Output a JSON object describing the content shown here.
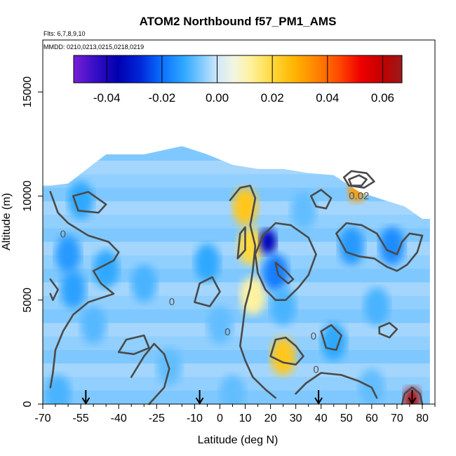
{
  "chart_data": {
    "type": "heatmap",
    "title": "ATOM2 Northbound f57_PM1_AMS",
    "flights_label": "Flts: 6,7,8,9,10",
    "dates_label": "MMDD: 0210,0213,0215,0218,0219",
    "xlabel": "Latitude (deg N)",
    "ylabel": "Altitude (m)",
    "xlim": [
      -70,
      85
    ],
    "ylim": [
      0,
      17500
    ],
    "x_ticks": [
      -70,
      -55,
      -40,
      -25,
      -10,
      0,
      10,
      20,
      30,
      40,
      50,
      60,
      70,
      80
    ],
    "y_ticks": [
      0,
      5000,
      10000,
      15000
    ],
    "colorbar": {
      "range": [
        -0.052,
        0.067
      ],
      "ticks": [
        -0.04,
        -0.02,
        0.0,
        0.02,
        0.04,
        0.06
      ],
      "tick_labels": [
        "-0.04",
        "-0.02",
        "0.00",
        "0.02",
        "0.04",
        "0.06"
      ],
      "stops": [
        {
          "value": -0.052,
          "color": "#7a1fd6"
        },
        {
          "value": -0.045,
          "color": "#3c10c8"
        },
        {
          "value": -0.036,
          "color": "#0000b0"
        },
        {
          "value": -0.028,
          "color": "#0026d8"
        },
        {
          "value": -0.02,
          "color": "#0a70ff"
        },
        {
          "value": -0.012,
          "color": "#2fa8ff"
        },
        {
          "value": -0.006,
          "color": "#7cc8ff"
        },
        {
          "value": 0.0,
          "color": "#cfe7fb"
        },
        {
          "value": 0.006,
          "color": "#f2f6e2"
        },
        {
          "value": 0.012,
          "color": "#fff2a0"
        },
        {
          "value": 0.02,
          "color": "#ffd93c"
        },
        {
          "value": 0.028,
          "color": "#ffb400"
        },
        {
          "value": 0.036,
          "color": "#ff8400"
        },
        {
          "value": 0.044,
          "color": "#ff4a00"
        },
        {
          "value": 0.052,
          "color": "#f00000"
        },
        {
          "value": 0.06,
          "color": "#c00000"
        },
        {
          "value": 0.067,
          "color": "#9a1a1a"
        }
      ]
    },
    "contour_labels": [
      {
        "text": "0.02",
        "x": 55,
        "y": 9850
      },
      {
        "text": "0",
        "x": -62,
        "y": 8000
      },
      {
        "text": "0",
        "x": 3,
        "y": 3300
      },
      {
        "text": "0",
        "x": 37,
        "y": 3100
      },
      {
        "text": "0",
        "x": 38,
        "y": 1500
      },
      {
        "text": "0",
        "x": -19,
        "y": 4750
      }
    ],
    "column_profiles": [
      {
        "lat": -67,
        "bottom": 0,
        "top": 10500
      },
      {
        "lat": -60,
        "bottom": 0,
        "top": 10600
      },
      {
        "lat": -45,
        "bottom": 0,
        "top": 12000
      },
      {
        "lat": -30,
        "bottom": 0,
        "top": 12000
      },
      {
        "lat": -15,
        "bottom": 0,
        "top": 12400
      },
      {
        "lat": -5,
        "bottom": 0,
        "top": 12000
      },
      {
        "lat": 5,
        "bottom": 0,
        "top": 11500
      },
      {
        "lat": 15,
        "bottom": 0,
        "top": 11300
      },
      {
        "lat": 25,
        "bottom": 0,
        "top": 11300
      },
      {
        "lat": 35,
        "bottom": 0,
        "top": 11100
      },
      {
        "lat": 45,
        "bottom": 0,
        "top": 11000
      },
      {
        "lat": 55,
        "bottom": 0,
        "top": 10200
      },
      {
        "lat": 65,
        "bottom": 0,
        "top": 9800
      },
      {
        "lat": 73,
        "bottom": 0,
        "top": 9500
      },
      {
        "lat": 80,
        "bottom": 0,
        "top": 8900
      }
    ],
    "anomalies": [
      {
        "lat": -55,
        "alt": 9800,
        "value": -0.012
      },
      {
        "lat": -60,
        "alt": 7200,
        "value": -0.014
      },
      {
        "lat": -58,
        "alt": 5500,
        "value": -0.013
      },
      {
        "lat": -45,
        "alt": 6500,
        "value": -0.012
      },
      {
        "lat": -50,
        "alt": 3800,
        "value": -0.009
      },
      {
        "lat": -30,
        "alt": 5800,
        "value": -0.01
      },
      {
        "lat": -20,
        "alt": 1800,
        "value": -0.008
      },
      {
        "lat": -5,
        "alt": 6800,
        "value": -0.012
      },
      {
        "lat": 0,
        "alt": 3800,
        "value": -0.008
      },
      {
        "lat": 10,
        "alt": 9500,
        "value": 0.024
      },
      {
        "lat": 12,
        "alt": 7600,
        "value": 0.02
      },
      {
        "lat": 13,
        "alt": 5200,
        "value": 0.012
      },
      {
        "lat": 19,
        "alt": 7800,
        "value": -0.035
      },
      {
        "lat": 22,
        "alt": 6300,
        "value": -0.018
      },
      {
        "lat": 25,
        "alt": 4700,
        "value": -0.01
      },
      {
        "lat": 25,
        "alt": 2300,
        "value": 0.024
      },
      {
        "lat": 33,
        "alt": 9300,
        "value": -0.008
      },
      {
        "lat": 45,
        "alt": 3000,
        "value": -0.012
      },
      {
        "lat": 52,
        "alt": 7600,
        "value": -0.014
      },
      {
        "lat": 54,
        "alt": 10300,
        "value": 0.032
      },
      {
        "lat": 62,
        "alt": 4700,
        "value": -0.01
      },
      {
        "lat": 68,
        "alt": 7600,
        "value": -0.016
      },
      {
        "lat": 76,
        "alt": 200,
        "value": 0.062
      },
      {
        "lat": -64,
        "alt": 500,
        "value": -0.01
      },
      {
        "lat": 5,
        "alt": 500,
        "value": -0.008
      },
      {
        "lat": 60,
        "alt": 800,
        "value": -0.008
      }
    ],
    "contours": [
      {
        "level": 0,
        "points": [
          [
            -45,
            9600
          ],
          [
            -52,
            10200
          ],
          [
            -58,
            10000
          ],
          [
            -56,
            9300
          ],
          [
            -48,
            9200
          ],
          [
            -45,
            9600
          ]
        ]
      },
      {
        "level": 0,
        "points": [
          [
            -67,
            10200
          ],
          [
            -64,
            9200
          ],
          [
            -60,
            8700
          ],
          [
            -52,
            8100
          ],
          [
            -44,
            7800
          ],
          [
            -40,
            7300
          ],
          [
            -42,
            6900
          ],
          [
            -50,
            6400
          ],
          [
            -47,
            5800
          ],
          [
            -42,
            5300
          ],
          [
            -52,
            4900
          ],
          [
            -58,
            4300
          ],
          [
            -62,
            3500
          ],
          [
            -65,
            2600
          ],
          [
            -66,
            1500
          ],
          [
            -67,
            800
          ]
        ]
      },
      {
        "level": 0,
        "points": [
          [
            -67,
            6000
          ],
          [
            -64,
            5500
          ],
          [
            -66,
            5000
          ],
          [
            -67,
            5300
          ]
        ]
      },
      {
        "level": 0,
        "points": [
          [
            -35,
            1300
          ],
          [
            -30,
            2300
          ],
          [
            -26,
            2900
          ],
          [
            -22,
            2400
          ],
          [
            -20,
            1700
          ],
          [
            -22,
            800
          ],
          [
            -28,
            0
          ]
        ]
      },
      {
        "level": 0,
        "points": [
          [
            -40,
            2500
          ],
          [
            -37,
            3100
          ],
          [
            -30,
            3300
          ],
          [
            -28,
            2700
          ],
          [
            -34,
            2400
          ],
          [
            -40,
            2500
          ]
        ]
      },
      {
        "level": 0,
        "points": [
          [
            -10,
            4900
          ],
          [
            -4,
            4700
          ],
          [
            0,
            5400
          ],
          [
            -3,
            6100
          ],
          [
            -8,
            5800
          ],
          [
            -10,
            4900
          ]
        ]
      },
      {
        "level": 0,
        "points": [
          [
            4,
            9800
          ],
          [
            8,
            10400
          ],
          [
            12,
            10500
          ],
          [
            14,
            9900
          ],
          [
            12,
            8600
          ],
          [
            14,
            7600
          ],
          [
            13,
            6400
          ],
          [
            12,
            5600
          ],
          [
            10,
            4700
          ],
          [
            9,
            3700
          ],
          [
            8,
            2800
          ],
          [
            10,
            2100
          ],
          [
            13,
            1300
          ],
          [
            18,
            700
          ],
          [
            22,
            300
          ]
        ]
      },
      {
        "level": 0,
        "points": [
          [
            8,
            8200
          ],
          [
            10,
            8500
          ],
          [
            10,
            7400
          ],
          [
            7,
            7000
          ],
          [
            8,
            8200
          ]
        ]
      },
      {
        "level": 0,
        "points": [
          [
            17,
            8100
          ],
          [
            22,
            8700
          ],
          [
            28,
            8600
          ],
          [
            35,
            8000
          ],
          [
            38,
            7200
          ],
          [
            35,
            6200
          ],
          [
            31,
            5600
          ],
          [
            26,
            5000
          ],
          [
            22,
            5000
          ],
          [
            18,
            5500
          ],
          [
            15,
            6300
          ],
          [
            14,
            7200
          ],
          [
            17,
            8100
          ]
        ]
      },
      {
        "level": 0,
        "points": [
          [
            22,
            6800
          ],
          [
            26,
            6400
          ],
          [
            29,
            6000
          ],
          [
            27,
            5800
          ],
          [
            23,
            6200
          ],
          [
            22,
            6800
          ]
        ]
      },
      {
        "level": 0.02,
        "points": [
          [
            20,
            2300
          ],
          [
            25,
            2000
          ],
          [
            30,
            1900
          ],
          [
            33,
            2300
          ],
          [
            30,
            2800
          ],
          [
            26,
            3200
          ],
          [
            22,
            3100
          ],
          [
            20,
            2300
          ]
        ]
      },
      {
        "level": 0,
        "points": [
          [
            40,
            3500
          ],
          [
            44,
            3800
          ],
          [
            48,
            3300
          ],
          [
            46,
            2600
          ],
          [
            42,
            2700
          ],
          [
            40,
            3500
          ]
        ]
      },
      {
        "level": 0,
        "points": [
          [
            30,
            500
          ],
          [
            34,
            1000
          ],
          [
            40,
            1500
          ],
          [
            48,
            1400
          ],
          [
            55,
            1100
          ],
          [
            60,
            800
          ],
          [
            62,
            300
          ]
        ]
      },
      {
        "level": 0,
        "points": [
          [
            36,
            10000
          ],
          [
            40,
            10300
          ],
          [
            44,
            9900
          ],
          [
            42,
            9400
          ],
          [
            38,
            9500
          ],
          [
            36,
            10000
          ]
        ]
      },
      {
        "level": 0,
        "points": [
          [
            46,
            8200
          ],
          [
            50,
            8700
          ],
          [
            56,
            8600
          ],
          [
            62,
            8200
          ],
          [
            66,
            7400
          ],
          [
            70,
            7200
          ],
          [
            72,
            7800
          ],
          [
            75,
            8200
          ],
          [
            80,
            8100
          ],
          [
            78,
            7300
          ],
          [
            74,
            6700
          ],
          [
            70,
            6400
          ],
          [
            66,
            6600
          ],
          [
            61,
            7000
          ],
          [
            55,
            7100
          ],
          [
            50,
            7300
          ],
          [
            46,
            8200
          ]
        ]
      },
      {
        "level": 0,
        "points": [
          [
            63,
            3700
          ],
          [
            67,
            3900
          ],
          [
            70,
            3600
          ],
          [
            67,
            3200
          ],
          [
            63,
            3400
          ],
          [
            63,
            3700
          ]
        ]
      },
      {
        "level": 0,
        "points": [
          [
            72,
            0
          ],
          [
            73,
            500
          ],
          [
            76,
            800
          ],
          [
            79,
            500
          ],
          [
            80,
            0
          ]
        ]
      },
      {
        "level": 0.02,
        "points": [
          [
            51,
            10800
          ],
          [
            55,
            11000
          ],
          [
            58,
            10800
          ],
          [
            56,
            10500
          ],
          [
            52,
            10500
          ],
          [
            51,
            10800
          ]
        ]
      },
      {
        "level": 0,
        "points": [
          [
            49,
            10900
          ],
          [
            52,
            11200
          ],
          [
            58,
            11100
          ],
          [
            61,
            10700
          ],
          [
            57,
            10400
          ],
          [
            51,
            10500
          ],
          [
            49,
            10900
          ]
        ]
      }
    ],
    "arrows": [
      -53,
      -8,
      39,
      76
    ]
  }
}
